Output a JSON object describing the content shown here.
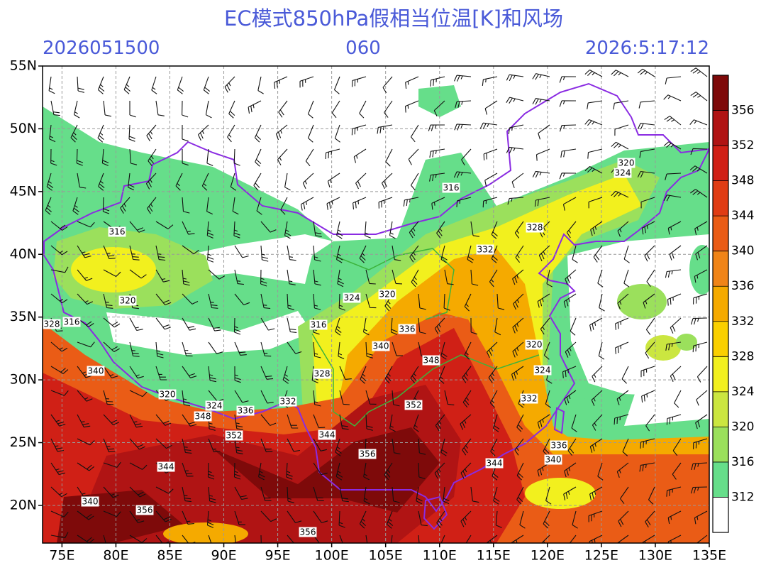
{
  "header": {
    "title": "EC模式850hPa假相当位温[K]和风场",
    "init_time": "2026051500",
    "forecast_hour": "060",
    "valid_time": "2026:5:17:12"
  },
  "axes": {
    "lon_range": [
      73.2,
      135
    ],
    "lat_range": [
      17,
      55
    ],
    "lat_ticks": [
      {
        "value": 55,
        "label": "55N"
      },
      {
        "value": 50,
        "label": "50N"
      },
      {
        "value": 45,
        "label": "45N"
      },
      {
        "value": 40,
        "label": "40N"
      },
      {
        "value": 35,
        "label": "35N"
      },
      {
        "value": 30,
        "label": "30N"
      },
      {
        "value": 25,
        "label": "25N"
      },
      {
        "value": 20,
        "label": "20N"
      }
    ],
    "lon_ticks": [
      {
        "value": 75,
        "label": "75E"
      },
      {
        "value": 80,
        "label": "80E"
      },
      {
        "value": 85,
        "label": "85E"
      },
      {
        "value": 90,
        "label": "90E"
      },
      {
        "value": 95,
        "label": "95E"
      },
      {
        "value": 100,
        "label": "100E"
      },
      {
        "value": 105,
        "label": "105E"
      },
      {
        "value": 110,
        "label": "110E"
      },
      {
        "value": 115,
        "label": "115E"
      },
      {
        "value": 120,
        "label": "120E"
      },
      {
        "value": 125,
        "label": "125E"
      },
      {
        "value": 130,
        "label": "130E"
      },
      {
        "value": 135,
        "label": "135E"
      }
    ]
  },
  "colorbar": {
    "levels": [
      312,
      316,
      320,
      324,
      328,
      332,
      336,
      340,
      344,
      348,
      352,
      356
    ],
    "colors": [
      "#ffffff",
      "#66de8a",
      "#9be05c",
      "#cbe640",
      "#f2f01e",
      "#fad000",
      "#f5aa00",
      "#f08418",
      "#ea5c16",
      "#e03c14",
      "#d02016",
      "#b01414",
      "#7e0a0a"
    ]
  },
  "contour_labels": [
    "320",
    "324",
    "316",
    "328",
    "332",
    "316",
    "320",
    "328",
    "316",
    "340",
    "324",
    "320",
    "316",
    "336",
    "340",
    "348",
    "320",
    "324",
    "328",
    "332",
    "352",
    "320",
    "324",
    "348",
    "336",
    "332",
    "344",
    "352",
    "356",
    "344",
    "344",
    "336",
    "340",
    "340",
    "356",
    "356"
  ]
}
